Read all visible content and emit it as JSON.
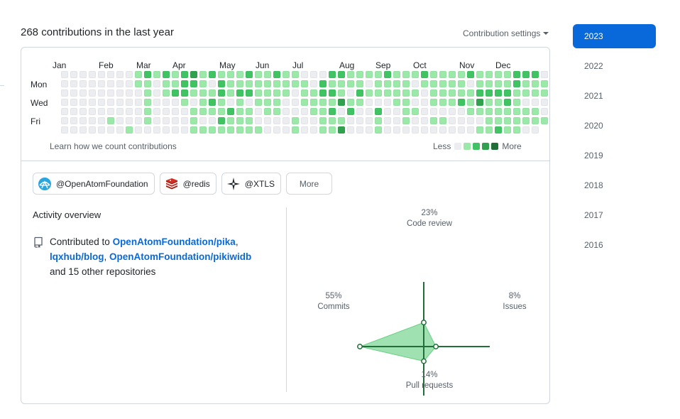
{
  "header": {
    "title": "268 contributions in the last year",
    "settings_label": "Contribution settings"
  },
  "calendar": {
    "months": [
      "Jan",
      "Feb",
      "Mar",
      "Apr",
      "May",
      "Jun",
      "Jul",
      "Aug",
      "Sep",
      "Oct",
      "Nov",
      "Dec"
    ],
    "days": [
      "Mon",
      "Wed",
      "Fri"
    ],
    "levels": [
      "00000000000000000000000000000000000000000000000000000",
      "00000000121212312111211211000221111211121111211112221100",
      "00000000110112210211111111102111101111011111011112111",
      "00000000010122111212211110112210211111101111122221111",
      "00000000010001012101011100111131100011001112131121",
      "00000000010000111121101100011202002001100000111111110",
      "00000100010000100211100001001110001001001100001111111",
      "00000001000000111111110001001130001000000000011211"
    ],
    "learn_label": "Learn how we count contributions",
    "legend_less": "Less",
    "legend_more": "More",
    "colors": [
      "#ebedf0",
      "#9be9a8",
      "#40c463",
      "#30a14e",
      "#216e39"
    ]
  },
  "orgs": [
    {
      "label": "@OpenAtomFoundation",
      "icon": "openatom-logo-icon"
    },
    {
      "label": "@redis",
      "icon": "redis-logo-icon"
    },
    {
      "label": "@XTLS",
      "icon": "xtls-logo-icon"
    }
  ],
  "orgs_more": "More",
  "activity": {
    "title": "Activity overview",
    "prefix": "Contributed to ",
    "repos": [
      "OpenAtomFoundation/pika",
      "lqxhub/blog",
      "OpenAtomFoundation/pikiwidb"
    ],
    "suffix": "and 15 other repositories",
    "icon": "repo-icon"
  },
  "radar": {
    "code_review": {
      "pct": "23%",
      "label": "Code review",
      "value": 23
    },
    "commits": {
      "pct": "55%",
      "label": "Commits",
      "value": 55
    },
    "issues": {
      "pct": "8%",
      "label": "Issues",
      "value": 8
    },
    "pull_requests": {
      "pct": "14%",
      "label": "Pull requests",
      "value": 14
    },
    "fill_color": "#40c463",
    "axis_color": "#216e39"
  },
  "years": [
    "2023",
    "2022",
    "2021",
    "2020",
    "2019",
    "2018",
    "2017",
    "2016"
  ],
  "selected_year": "2023"
}
